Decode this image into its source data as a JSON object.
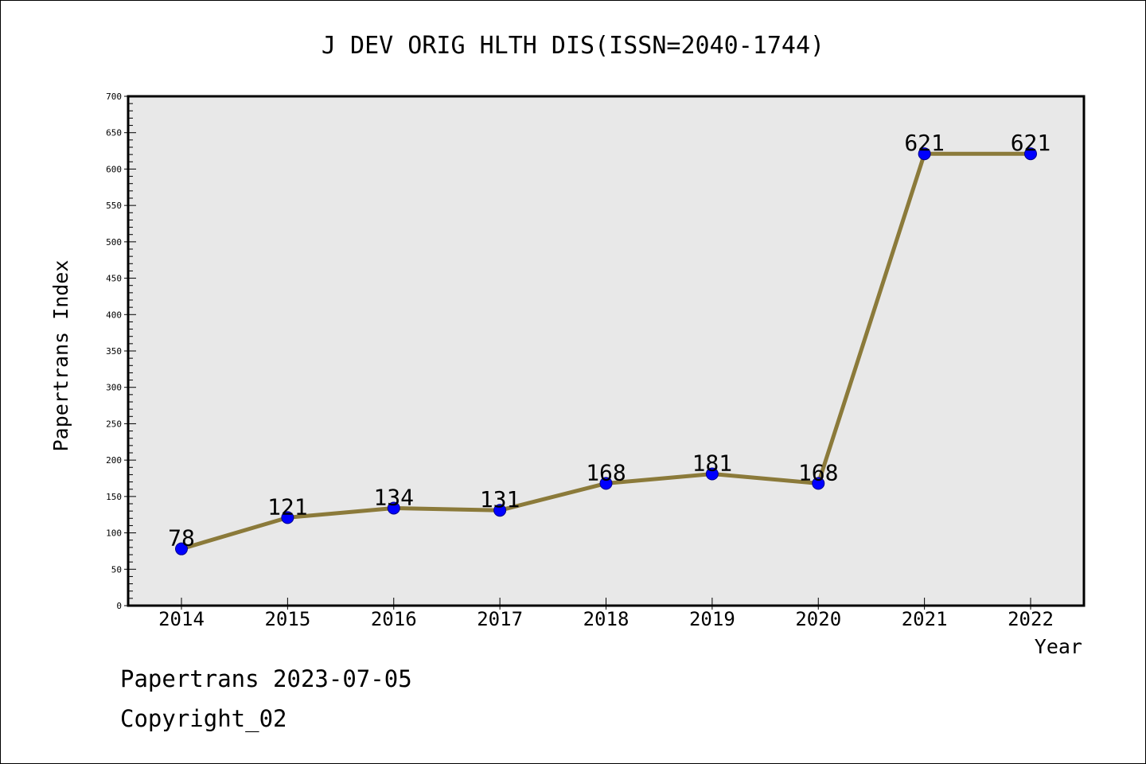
{
  "chart_data": {
    "type": "line",
    "title": "J DEV ORIG HLTH DIS(ISSN=2040-1744)",
    "xlabel": "Year",
    "ylabel": "Papertrans Index",
    "categories": [
      "2014",
      "2015",
      "2016",
      "2017",
      "2018",
      "2019",
      "2020",
      "2021",
      "2022"
    ],
    "series": [
      {
        "values": [
          78,
          121,
          134,
          131,
          168,
          181,
          168,
          621,
          621
        ],
        "labels": [
          "78",
          "121",
          "134",
          "131",
          "168",
          "181",
          "168",
          "621",
          "621"
        ]
      }
    ],
    "ylim": [
      0,
      700
    ],
    "yticks": [
      0,
      50,
      100,
      150,
      200,
      250,
      300,
      350,
      400,
      450,
      500,
      550,
      600,
      650,
      700
    ],
    "ytick_labels": [
      "0",
      "50",
      "100",
      "150",
      "200",
      "250",
      "300",
      "350",
      "400",
      "450",
      "500",
      "550",
      "600",
      "650",
      "700"
    ],
    "grid": false,
    "legend": "none",
    "colors": {
      "line": "#8b7a3a",
      "marker": "#0000ff",
      "marker_edge": "#00008b",
      "plot_background": "#e8e8e8"
    }
  },
  "footer": {
    "line1": "Papertrans 2023-07-05",
    "line2": "Copyright_02"
  }
}
